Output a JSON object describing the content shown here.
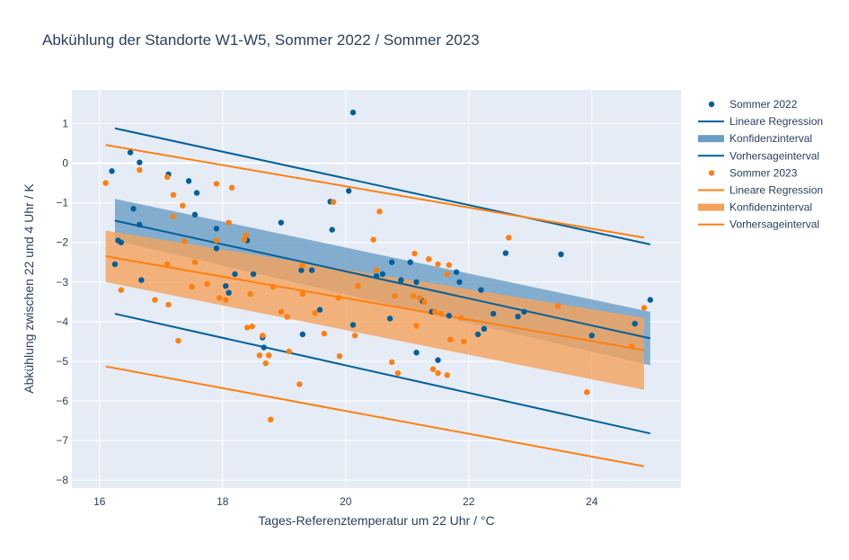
{
  "chart_data": {
    "type": "scatter",
    "title": "Abkühlung der Standorte W1-W5, Sommer 2022 / Sommer 2023",
    "xlabel": "Tages-Referenztemperatur um 22 Uhr / °C",
    "ylabel": "Abkühlung zwischen 22 und 4 Uhr / K",
    "xlim": [
      15.55,
      25.45
    ],
    "ylim": [
      -8.2,
      1.85
    ],
    "xticks": [
      16,
      18,
      20,
      22,
      24
    ],
    "yticks": [
      -8,
      -7,
      -6,
      -5,
      -4,
      -3,
      -2,
      -1,
      0,
      1
    ],
    "grid": true,
    "legend_position": "right",
    "colors": {
      "s2022": "#00609a",
      "s2022_band": "#6a9ec4",
      "s2023": "#ff7f0e",
      "s2023_band": "#f5a25d",
      "plot_bg": "#e5ecf6",
      "grid": "#ffffff",
      "text": "#2a3f5f"
    },
    "legend": [
      {
        "label": "Sommer 2022",
        "kind": "marker",
        "color": "#00609a"
      },
      {
        "label": "Lineare Regression",
        "kind": "line",
        "color": "#00609a"
      },
      {
        "label": "Konfidenzinterval",
        "kind": "band",
        "color": "#6a9ec4"
      },
      {
        "label": "Vorhersageinterval",
        "kind": "line",
        "color": "#00609a"
      },
      {
        "label": "Sommer 2023",
        "kind": "marker",
        "color": "#ff7f0e"
      },
      {
        "label": "Lineare Regression",
        "kind": "line",
        "color": "#ff7f0e"
      },
      {
        "label": "Konfidenzinterval",
        "kind": "band",
        "color": "#f5a25d"
      },
      {
        "label": "Vorhersageinterval",
        "kind": "line",
        "color": "#ff7f0e"
      }
    ],
    "series": [
      {
        "name": "Sommer 2022",
        "color": "#00609a",
        "band_color": "#6a9ec4",
        "points": [
          [
            16.2,
            -0.2
          ],
          [
            16.25,
            -2.55
          ],
          [
            16.3,
            -1.95
          ],
          [
            16.35,
            -2.0
          ],
          [
            16.5,
            0.27
          ],
          [
            16.55,
            -1.15
          ],
          [
            16.65,
            0.02
          ],
          [
            16.65,
            -1.55
          ],
          [
            16.68,
            -2.95
          ],
          [
            17.12,
            -0.28
          ],
          [
            17.45,
            -0.45
          ],
          [
            17.55,
            -1.3
          ],
          [
            17.58,
            -0.75
          ],
          [
            17.9,
            -1.65
          ],
          [
            17.9,
            -2.15
          ],
          [
            18.05,
            -3.1
          ],
          [
            18.1,
            -3.27
          ],
          [
            18.2,
            -2.8
          ],
          [
            18.4,
            -1.95
          ],
          [
            18.5,
            -2.8
          ],
          [
            18.65,
            -4.4
          ],
          [
            18.67,
            -4.65
          ],
          [
            18.95,
            -1.5
          ],
          [
            19.28,
            -2.7
          ],
          [
            19.3,
            -4.32
          ],
          [
            19.45,
            -2.7
          ],
          [
            19.58,
            -3.7
          ],
          [
            19.75,
            -0.97
          ],
          [
            19.78,
            -1.68
          ],
          [
            20.05,
            -0.7
          ],
          [
            20.12,
            1.28
          ],
          [
            20.12,
            -4.08
          ],
          [
            20.5,
            -2.85
          ],
          [
            20.6,
            -2.8
          ],
          [
            20.72,
            -3.92
          ],
          [
            20.75,
            -2.5
          ],
          [
            20.9,
            -2.95
          ],
          [
            21.05,
            -2.5
          ],
          [
            21.15,
            -3.0
          ],
          [
            21.15,
            -4.78
          ],
          [
            21.25,
            -3.48
          ],
          [
            21.4,
            -3.75
          ],
          [
            21.5,
            -4.97
          ],
          [
            21.68,
            -3.85
          ],
          [
            21.8,
            -2.75
          ],
          [
            21.85,
            -3.0
          ],
          [
            22.15,
            -4.32
          ],
          [
            22.2,
            -3.2
          ],
          [
            22.25,
            -4.18
          ],
          [
            22.4,
            -3.8
          ],
          [
            22.6,
            -2.27
          ],
          [
            22.8,
            -3.87
          ],
          [
            22.9,
            -3.75
          ],
          [
            23.5,
            -2.3
          ],
          [
            24.0,
            -4.35
          ],
          [
            24.7,
            -4.05
          ],
          [
            24.95,
            -3.45
          ]
        ],
        "regression": [
          [
            16.25,
            -1.45
          ],
          [
            24.95,
            -4.42
          ]
        ],
        "confidence_upper": [
          [
            16.25,
            -0.9
          ],
          [
            24.95,
            -3.75
          ]
        ],
        "confidence_lower": [
          [
            16.25,
            -1.95
          ],
          [
            24.95,
            -5.1
          ]
        ],
        "prediction_upper": [
          [
            16.25,
            0.88
          ],
          [
            24.95,
            -2.05
          ]
        ],
        "prediction_lower": [
          [
            16.25,
            -3.8
          ],
          [
            24.95,
            -6.82
          ]
        ]
      },
      {
        "name": "Sommer 2023",
        "color": "#ff7f0e",
        "band_color": "#f5a25d",
        "points": [
          [
            16.1,
            -0.5
          ],
          [
            16.35,
            -3.2
          ],
          [
            16.65,
            -0.17
          ],
          [
            16.9,
            -3.45
          ],
          [
            17.1,
            -0.35
          ],
          [
            17.1,
            -2.55
          ],
          [
            17.12,
            -3.57
          ],
          [
            17.2,
            -0.8
          ],
          [
            17.2,
            -1.35
          ],
          [
            17.28,
            -4.48
          ],
          [
            17.35,
            -1.07
          ],
          [
            17.38,
            -1.97
          ],
          [
            17.5,
            -3.12
          ],
          [
            17.55,
            -2.5
          ],
          [
            17.75,
            -3.05
          ],
          [
            17.9,
            -0.52
          ],
          [
            17.9,
            -1.95
          ],
          [
            17.95,
            -3.4
          ],
          [
            18.05,
            -3.45
          ],
          [
            18.1,
            -1.5
          ],
          [
            18.15,
            -0.62
          ],
          [
            18.35,
            -1.93
          ],
          [
            18.38,
            -1.82
          ],
          [
            18.4,
            -4.15
          ],
          [
            18.45,
            -3.3
          ],
          [
            18.48,
            -4.12
          ],
          [
            18.6,
            -4.85
          ],
          [
            18.65,
            -4.35
          ],
          [
            18.7,
            -5.05
          ],
          [
            18.75,
            -4.85
          ],
          [
            18.78,
            -6.47
          ],
          [
            18.82,
            -3.12
          ],
          [
            18.95,
            -3.75
          ],
          [
            19.05,
            -3.88
          ],
          [
            19.08,
            -4.75
          ],
          [
            19.25,
            -5.58
          ],
          [
            19.3,
            -2.58
          ],
          [
            19.3,
            -3.3
          ],
          [
            19.5,
            -3.78
          ],
          [
            19.65,
            -4.3
          ],
          [
            19.8,
            -0.98
          ],
          [
            19.88,
            -3.4
          ],
          [
            19.9,
            -4.87
          ],
          [
            20.15,
            -4.35
          ],
          [
            20.2,
            -3.1
          ],
          [
            20.45,
            -1.93
          ],
          [
            20.5,
            -2.7
          ],
          [
            20.55,
            -1.22
          ],
          [
            20.75,
            -5.02
          ],
          [
            20.8,
            -3.35
          ],
          [
            20.85,
            -5.3
          ],
          [
            21.1,
            -3.35
          ],
          [
            21.12,
            -2.28
          ],
          [
            21.15,
            -4.1
          ],
          [
            21.2,
            -3.4
          ],
          [
            21.28,
            -3.5
          ],
          [
            21.35,
            -2.42
          ],
          [
            21.42,
            -5.2
          ],
          [
            21.45,
            -3.75
          ],
          [
            21.5,
            -2.55
          ],
          [
            21.5,
            -5.3
          ],
          [
            21.55,
            -3.8
          ],
          [
            21.65,
            -2.8
          ],
          [
            21.65,
            -5.35
          ],
          [
            21.68,
            -2.57
          ],
          [
            21.7,
            -4.45
          ],
          [
            21.88,
            -3.9
          ],
          [
            21.92,
            -4.5
          ],
          [
            22.65,
            -1.88
          ],
          [
            23.45,
            -3.6
          ],
          [
            23.92,
            -5.78
          ],
          [
            24.65,
            -4.62
          ],
          [
            24.85,
            -3.65
          ]
        ],
        "regression": [
          [
            16.1,
            -2.35
          ],
          [
            24.85,
            -4.72
          ]
        ],
        "confidence_upper": [
          [
            16.1,
            -1.7
          ],
          [
            24.85,
            -3.9
          ]
        ],
        "confidence_lower": [
          [
            16.1,
            -3.0
          ],
          [
            24.85,
            -5.72
          ]
        ],
        "prediction_upper": [
          [
            16.1,
            0.46
          ],
          [
            24.85,
            -1.88
          ]
        ],
        "prediction_lower": [
          [
            16.1,
            -5.13
          ],
          [
            24.85,
            -7.65
          ]
        ]
      }
    ]
  }
}
